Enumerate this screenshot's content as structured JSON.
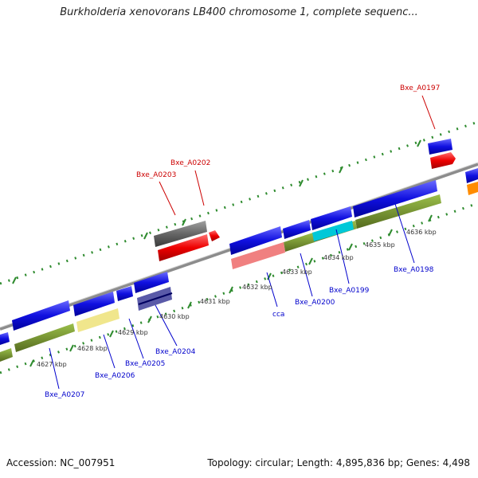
{
  "title": "Burkholderia xenovorans LB400 chromosome 1, complete sequenc...",
  "footer": {
    "accession": "Accession: NC_007951",
    "summary": "Topology: circular; Length: 4,895,836 bp; Genes: 4,498"
  },
  "colors": {
    "forward_label": "#cc0000",
    "reverse_label": "#0000cc",
    "backbone": "#8c8c8c",
    "ticks": "#2e8b2e",
    "cds_blue": "#1010e0",
    "cds_red": "#ee0000",
    "cds_grey": "#666666",
    "olive": "#6b8e23",
    "yellow": "#f0e68c",
    "pink": "#f08080",
    "cyan": "#00c8d8",
    "purple": "#5a5aa8",
    "orange": "#ff8c00"
  },
  "kbp_labels": [
    "4627 kbp",
    "4628 kbp",
    "4629 kbp",
    "4630 kbp",
    "4631 kbp",
    "4632 kbp",
    "4633 kbp",
    "4634 kbp",
    "4635 kbp",
    "4636 kbp"
  ],
  "gene_labels": {
    "top": [
      "Bxe_A0203",
      "Bxe_A0202",
      "Bxe_A0197"
    ],
    "bottom": [
      "Bxe_A0207",
      "Bxe_A0206",
      "Bxe_A0205",
      "Bxe_A0204",
      "cca",
      "Bxe_A0200",
      "Bxe_A0199",
      "Bxe_A0198"
    ]
  }
}
